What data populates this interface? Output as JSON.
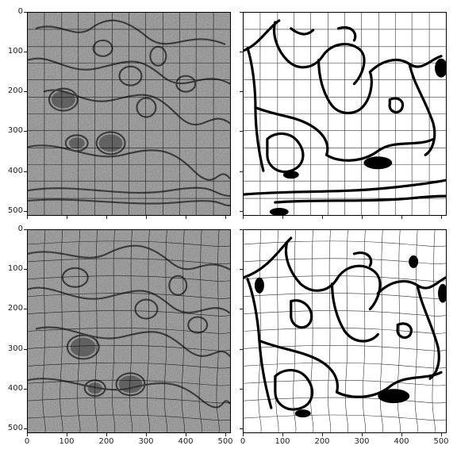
{
  "panels": [
    {
      "id": "em-original",
      "kind": "em"
    },
    {
      "id": "label-original",
      "kind": "label"
    },
    {
      "id": "em-deformed",
      "kind": "em"
    },
    {
      "id": "label-deformed",
      "kind": "label"
    }
  ],
  "axes": {
    "y_ticks": [
      "0",
      "100",
      "200",
      "300",
      "400",
      "500"
    ],
    "x_ticks": [
      "0",
      "100",
      "200",
      "300",
      "400",
      "500"
    ]
  },
  "colors": {
    "em_background": "#8d8d8d",
    "membrane_dark": "#2e2e2e",
    "label_fill": "#ffffff",
    "label_boundary": "#000000",
    "grid_line": "#000000"
  }
}
